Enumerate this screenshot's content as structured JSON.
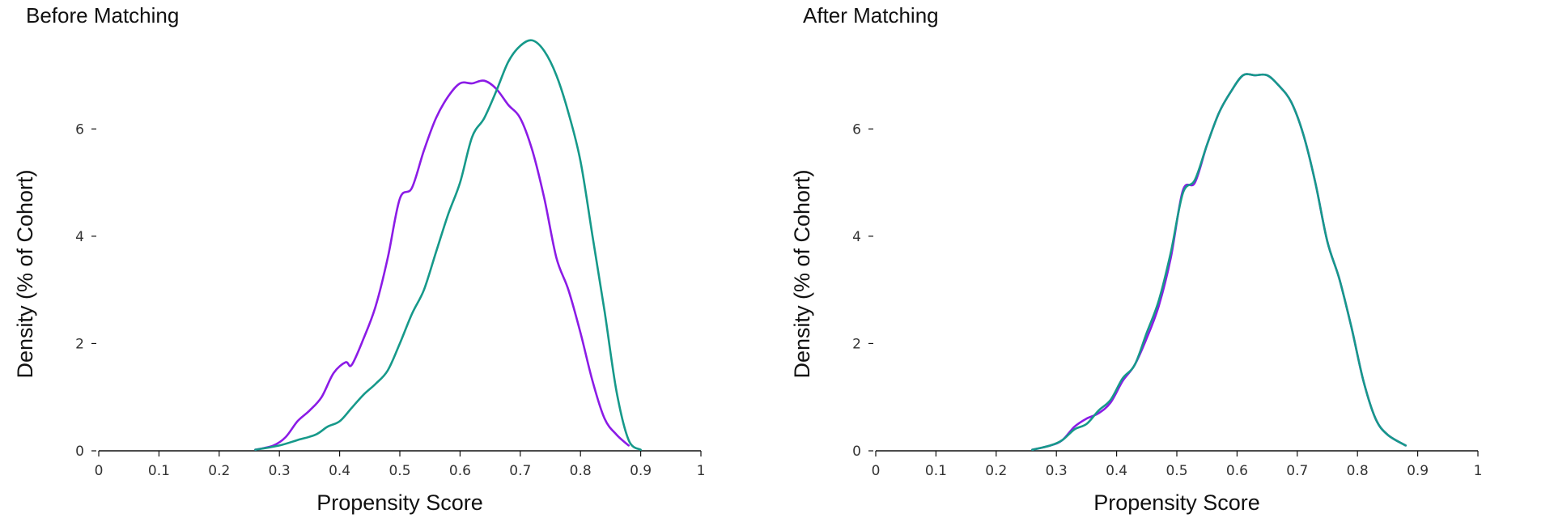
{
  "chart_data": [
    {
      "type": "line",
      "title": "Before Matching",
      "xlabel": "Propensity Score",
      "ylabel": "Density (% of Cohort)",
      "xlim": [
        0,
        1
      ],
      "ylim": [
        0,
        7.8
      ],
      "xticks": [
        "0",
        "0.1",
        "0.2",
        "0.3",
        "0.4",
        "0.5",
        "0.6",
        "0.7",
        "0.8",
        "0.9",
        "1"
      ],
      "yticks": [
        "0",
        "2",
        "4",
        "6"
      ],
      "grid": false,
      "series": [
        {
          "color": "#8b1be6",
          "x": [
            0.26,
            0.29,
            0.31,
            0.33,
            0.35,
            0.37,
            0.39,
            0.41,
            0.42,
            0.44,
            0.46,
            0.48,
            0.5,
            0.52,
            0.54,
            0.56,
            0.58,
            0.6,
            0.62,
            0.64,
            0.66,
            0.68,
            0.7,
            0.72,
            0.74,
            0.76,
            0.78,
            0.8,
            0.82,
            0.84,
            0.86,
            0.88
          ],
          "y": [
            0.02,
            0.1,
            0.25,
            0.55,
            0.75,
            1.0,
            1.45,
            1.65,
            1.6,
            2.1,
            2.7,
            3.6,
            4.7,
            4.9,
            5.6,
            6.2,
            6.6,
            6.85,
            6.85,
            6.9,
            6.75,
            6.45,
            6.2,
            5.6,
            4.7,
            3.6,
            3.0,
            2.2,
            1.3,
            0.6,
            0.3,
            0.1
          ]
        },
        {
          "color": "#16998a",
          "x": [
            0.26,
            0.3,
            0.33,
            0.36,
            0.38,
            0.4,
            0.42,
            0.44,
            0.46,
            0.48,
            0.5,
            0.52,
            0.54,
            0.56,
            0.58,
            0.6,
            0.62,
            0.64,
            0.66,
            0.68,
            0.7,
            0.72,
            0.74,
            0.76,
            0.78,
            0.8,
            0.82,
            0.84,
            0.86,
            0.88,
            0.9
          ],
          "y": [
            0.02,
            0.1,
            0.2,
            0.3,
            0.45,
            0.55,
            0.8,
            1.05,
            1.25,
            1.5,
            2.0,
            2.55,
            3.0,
            3.7,
            4.4,
            5.0,
            5.85,
            6.2,
            6.7,
            7.25,
            7.55,
            7.65,
            7.45,
            7.0,
            6.3,
            5.4,
            4.0,
            2.6,
            1.1,
            0.2,
            0.02
          ]
        }
      ]
    },
    {
      "type": "line",
      "title": "After Matching",
      "xlabel": "Propensity Score",
      "ylabel": "Density (% of Cohort)",
      "xlim": [
        0,
        1
      ],
      "ylim": [
        0,
        7.8
      ],
      "xticks": [
        "0",
        "0.1",
        "0.2",
        "0.3",
        "0.4",
        "0.5",
        "0.6",
        "0.7",
        "0.8",
        "0.9",
        "1"
      ],
      "yticks": [
        "0",
        "2",
        "4",
        "6"
      ],
      "grid": false,
      "series": [
        {
          "color": "#8b1be6",
          "x": [
            0.26,
            0.29,
            0.31,
            0.33,
            0.35,
            0.37,
            0.39,
            0.41,
            0.43,
            0.45,
            0.47,
            0.49,
            0.51,
            0.53,
            0.55,
            0.57,
            0.59,
            0.61,
            0.63,
            0.65,
            0.67,
            0.69,
            0.71,
            0.73,
            0.75,
            0.77,
            0.79,
            0.81,
            0.83,
            0.85,
            0.88
          ],
          "y": [
            0.02,
            0.1,
            0.2,
            0.45,
            0.6,
            0.7,
            0.9,
            1.3,
            1.6,
            2.1,
            2.7,
            3.6,
            4.85,
            5.0,
            5.7,
            6.3,
            6.7,
            7.0,
            7.0,
            7.0,
            6.8,
            6.5,
            5.9,
            5.0,
            3.9,
            3.2,
            2.3,
            1.3,
            0.6,
            0.3,
            0.1
          ]
        },
        {
          "color": "#16998a",
          "x": [
            0.26,
            0.29,
            0.31,
            0.33,
            0.35,
            0.37,
            0.39,
            0.41,
            0.43,
            0.45,
            0.47,
            0.49,
            0.51,
            0.53,
            0.55,
            0.57,
            0.59,
            0.61,
            0.63,
            0.65,
            0.67,
            0.69,
            0.71,
            0.73,
            0.75,
            0.77,
            0.79,
            0.81,
            0.83,
            0.85,
            0.88
          ],
          "y": [
            0.02,
            0.1,
            0.2,
            0.4,
            0.5,
            0.75,
            0.95,
            1.35,
            1.6,
            2.2,
            2.8,
            3.7,
            4.8,
            5.05,
            5.7,
            6.3,
            6.7,
            7.0,
            7.0,
            7.0,
            6.8,
            6.5,
            5.9,
            5.0,
            3.9,
            3.2,
            2.3,
            1.3,
            0.6,
            0.3,
            0.1
          ]
        }
      ]
    }
  ]
}
